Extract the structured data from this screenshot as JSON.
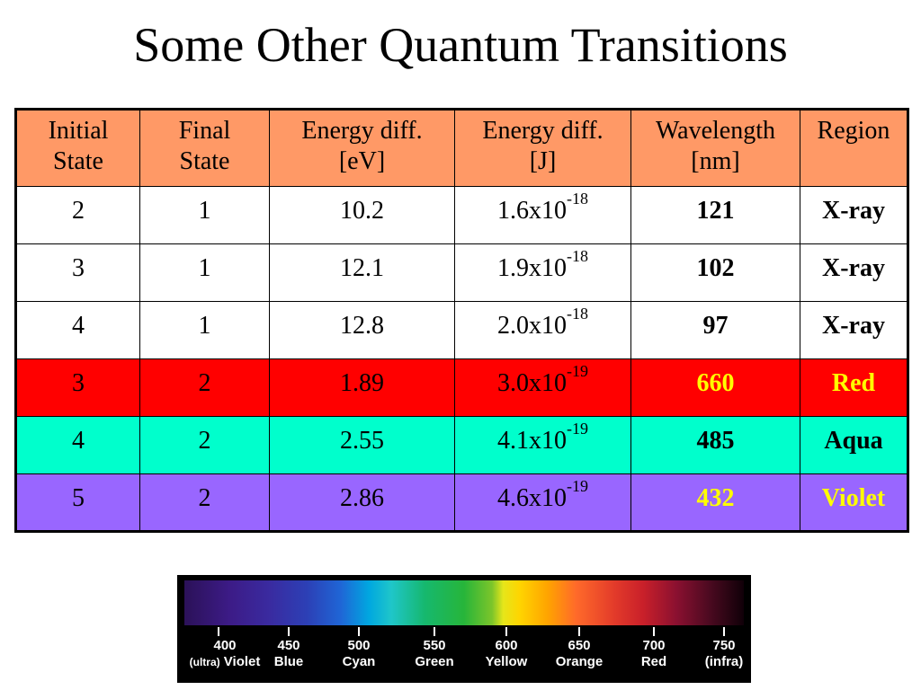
{
  "title": "Some Other Quantum Transitions",
  "table": {
    "headers": [
      [
        "Initial",
        "State"
      ],
      [
        "Final",
        "State"
      ],
      [
        "Energy diff.",
        "[eV]"
      ],
      [
        "Energy diff.",
        "[J]"
      ],
      [
        "Wavelength",
        "[nm]"
      ],
      [
        "Region"
      ]
    ],
    "header_bg": "#FF9966",
    "rows": [
      {
        "initial": "2",
        "final": "1",
        "ev": "10.2",
        "j_base": "1.6x10",
        "j_exp": "-18",
        "wavelength": "121",
        "region": "X-ray",
        "bg": "#FFFFFF",
        "highlight": "#000000"
      },
      {
        "initial": "3",
        "final": "1",
        "ev": "12.1",
        "j_base": "1.9x10",
        "j_exp": "-18",
        "wavelength": "102",
        "region": "X-ray",
        "bg": "#FFFFFF",
        "highlight": "#000000"
      },
      {
        "initial": "4",
        "final": "1",
        "ev": "12.8",
        "j_base": "2.0x10",
        "j_exp": "-18",
        "wavelength": "97",
        "region": "X-ray",
        "bg": "#FFFFFF",
        "highlight": "#000000"
      },
      {
        "initial": "3",
        "final": "2",
        "ev": "1.89",
        "j_base": "3.0x10",
        "j_exp": "-19",
        "wavelength": "660",
        "region": "Red",
        "bg": "#FF0000",
        "highlight": "#FFFF00"
      },
      {
        "initial": "4",
        "final": "2",
        "ev": "2.55",
        "j_base": "4.1x10",
        "j_exp": "-19",
        "wavelength": "485",
        "region": "Aqua",
        "bg": "#00FFCC",
        "highlight": "#000000"
      },
      {
        "initial": "5",
        "final": "2",
        "ev": "2.86",
        "j_base": "4.6x10",
        "j_exp": "-19",
        "wavelength": "432",
        "region": "Violet",
        "bg": "#9966FF",
        "highlight": "#FFFF00"
      }
    ]
  },
  "spectrum": {
    "labels": [
      {
        "nm": "400",
        "name": "Violet",
        "prefix": "(ultra)"
      },
      {
        "nm": "450",
        "name": "Blue",
        "prefix": ""
      },
      {
        "nm": "500",
        "name": "Cyan",
        "prefix": ""
      },
      {
        "nm": "550",
        "name": "Green",
        "prefix": ""
      },
      {
        "nm": "600",
        "name": "Yellow",
        "prefix": ""
      },
      {
        "nm": "650",
        "name": "Orange",
        "prefix": ""
      },
      {
        "nm": "700",
        "name": "Red",
        "prefix": ""
      },
      {
        "nm": "750",
        "name": "(infra)",
        "prefix": ""
      }
    ]
  }
}
